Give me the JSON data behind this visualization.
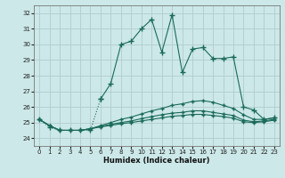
{
  "xlabel": "Humidex (Indice chaleur)",
  "bg_color": "#cce8e8",
  "grid_color": "#b0cccc",
  "line_color": "#1a6a5a",
  "xlim": [
    -0.5,
    23.5
  ],
  "ylim": [
    23.5,
    32.5
  ],
  "yticks": [
    24,
    25,
    26,
    27,
    28,
    29,
    30,
    31,
    32
  ],
  "xticks": [
    0,
    1,
    2,
    3,
    4,
    5,
    6,
    7,
    8,
    9,
    10,
    11,
    12,
    13,
    14,
    15,
    16,
    17,
    18,
    19,
    20,
    21,
    22,
    23
  ],
  "main_x": [
    0,
    1,
    2,
    3,
    4,
    5,
    6,
    7,
    8,
    9,
    10,
    11,
    12,
    13,
    14,
    15,
    16,
    17,
    18,
    19,
    20,
    21,
    22,
    23
  ],
  "main_y": [
    25.2,
    24.7,
    24.5,
    24.5,
    24.5,
    24.5,
    26.5,
    27.5,
    30.0,
    30.2,
    31.0,
    31.6,
    29.5,
    31.9,
    28.2,
    29.7,
    29.8,
    29.1,
    29.1,
    29.2,
    26.0,
    25.8,
    25.2,
    25.3
  ],
  "flat1_x": [
    0,
    1,
    2,
    3,
    4,
    5,
    6,
    7,
    8,
    9,
    10,
    11,
    12,
    13,
    14,
    15,
    16,
    17,
    18,
    19,
    20,
    21,
    22,
    23
  ],
  "flat1_y": [
    25.2,
    24.8,
    24.5,
    24.5,
    24.5,
    24.6,
    24.8,
    25.0,
    25.2,
    25.35,
    25.55,
    25.75,
    25.9,
    26.1,
    26.2,
    26.35,
    26.4,
    26.3,
    26.1,
    25.9,
    25.5,
    25.2,
    25.2,
    25.3
  ],
  "flat2_x": [
    0,
    1,
    2,
    3,
    4,
    5,
    6,
    7,
    8,
    9,
    10,
    11,
    12,
    13,
    14,
    15,
    16,
    17,
    18,
    19,
    20,
    21,
    22,
    23
  ],
  "flat2_y": [
    25.2,
    24.8,
    24.5,
    24.5,
    24.5,
    24.6,
    24.75,
    24.88,
    25.0,
    25.1,
    25.25,
    25.38,
    25.5,
    25.6,
    25.65,
    25.75,
    25.75,
    25.65,
    25.55,
    25.45,
    25.15,
    25.05,
    25.1,
    25.2
  ],
  "flat3_x": [
    0,
    1,
    2,
    3,
    4,
    5,
    6,
    7,
    8,
    9,
    10,
    11,
    12,
    13,
    14,
    15,
    16,
    17,
    18,
    19,
    20,
    21,
    22,
    23
  ],
  "flat3_y": [
    25.2,
    24.8,
    24.5,
    24.5,
    24.5,
    24.6,
    24.72,
    24.82,
    24.92,
    25.0,
    25.1,
    25.2,
    25.3,
    25.4,
    25.45,
    25.52,
    25.52,
    25.45,
    25.38,
    25.28,
    25.05,
    25.0,
    25.05,
    25.15
  ]
}
